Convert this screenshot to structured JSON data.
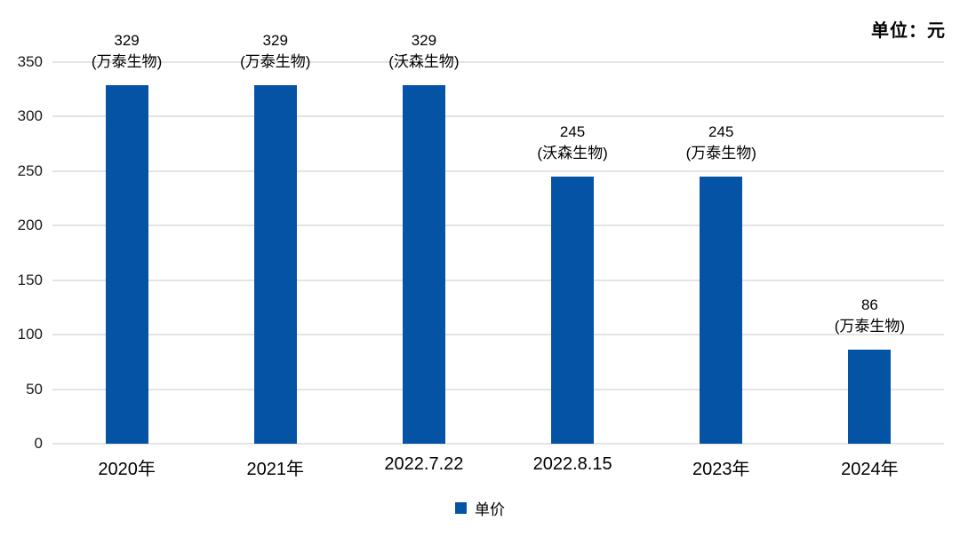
{
  "unit_label": "单位：元",
  "legend": {
    "items": [
      {
        "label": "单价",
        "color": "#0553a5"
      }
    ]
  },
  "chart_data": {
    "type": "bar",
    "title": "",
    "xlabel": "",
    "ylabel": "",
    "unit": "元",
    "categories": [
      "2020年",
      "2021年",
      "2022.7.22",
      "2022.8.15",
      "2023年",
      "2024年"
    ],
    "series": [
      {
        "name": "单价",
        "color": "#0553a5",
        "values": [
          329,
          329,
          329,
          245,
          245,
          86
        ]
      }
    ],
    "data_labels": [
      {
        "value": "329",
        "note": "(万泰生物)"
      },
      {
        "value": "329",
        "note": "(万泰生物)"
      },
      {
        "value": "329",
        "note": "(沃森生物)"
      },
      {
        "value": "245",
        "note": "(沃森生物)"
      },
      {
        "value": "245",
        "note": "(万泰生物)"
      },
      {
        "value": "86",
        "note": "(万泰生物)"
      }
    ],
    "ylim": [
      0,
      350
    ],
    "ytick_step": 50,
    "ytick_labels": [
      "0",
      "50",
      "100",
      "150",
      "200",
      "250",
      "300",
      "350"
    ],
    "grid": true,
    "legend_position": "bottom",
    "gridline_color": "#e4e4e4"
  }
}
